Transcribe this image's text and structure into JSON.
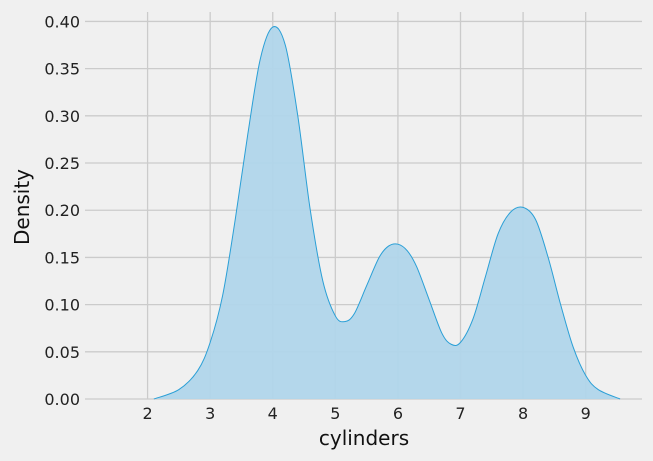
{
  "chart_data": {
    "type": "area",
    "title": "",
    "xlabel": "cylinders",
    "ylabel": "Density",
    "xlim": [
      1.0,
      9.9
    ],
    "ylim": [
      0.0,
      0.41
    ],
    "x_ticks": [
      2,
      3,
      4,
      5,
      6,
      7,
      8,
      9
    ],
    "y_ticks": [
      0.0,
      0.05,
      0.1,
      0.15,
      0.2,
      0.25,
      0.3,
      0.35,
      0.4
    ],
    "y_tick_labels": [
      "0.00",
      "0.05",
      "0.10",
      "0.15",
      "0.20",
      "0.25",
      "0.30",
      "0.35",
      "0.40"
    ],
    "grid": true,
    "fill_color": "#b0d5ea",
    "line_color": "#2a9fd6",
    "series": [
      {
        "x": [
          2.1,
          2.5,
          2.8,
          3.0,
          3.2,
          3.4,
          3.6,
          3.8,
          4.0,
          4.2,
          4.4,
          4.6,
          4.8,
          5.0,
          5.15,
          5.3,
          5.5,
          5.7,
          5.85,
          6.0,
          6.15,
          6.3,
          6.5,
          6.7,
          6.85,
          7.0,
          7.2,
          7.4,
          7.6,
          7.8,
          8.0,
          8.2,
          8.4,
          8.6,
          8.8,
          9.0,
          9.2,
          9.55
        ],
        "y": [
          0.0,
          0.01,
          0.03,
          0.06,
          0.11,
          0.19,
          0.28,
          0.36,
          0.394,
          0.375,
          0.3,
          0.2,
          0.125,
          0.088,
          0.082,
          0.09,
          0.12,
          0.15,
          0.162,
          0.164,
          0.157,
          0.14,
          0.105,
          0.07,
          0.058,
          0.06,
          0.085,
          0.13,
          0.175,
          0.198,
          0.203,
          0.19,
          0.15,
          0.1,
          0.055,
          0.025,
          0.01,
          0.0
        ]
      }
    ]
  }
}
